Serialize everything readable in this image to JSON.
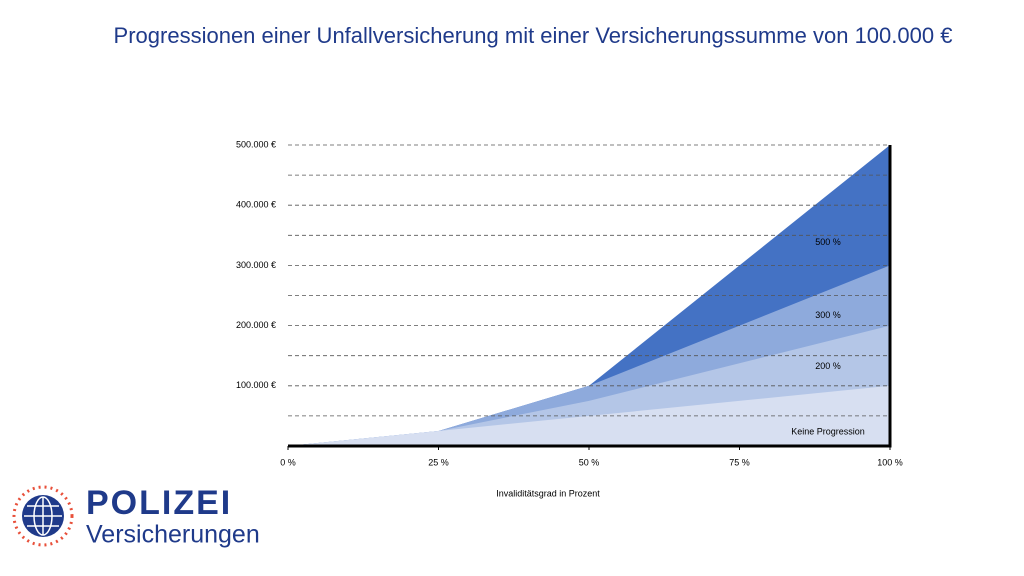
{
  "chart_data": {
    "type": "area",
    "title": "Progressionen einer Unfallversicherung mit einer Versicherungssumme von 100.000 €",
    "xlabel": "Invaliditätsgrad in Prozent",
    "x": [
      0,
      25,
      50,
      100
    ],
    "series": [
      {
        "name": "Keine Progression",
        "color": "#d7dff1",
        "values": [
          0,
          25000,
          50000,
          100000
        ]
      },
      {
        "name": "200 %",
        "color": "#b4c6e7",
        "values": [
          0,
          25000,
          75000,
          200000
        ]
      },
      {
        "name": "300 %",
        "color": "#8eaadc",
        "values": [
          0,
          25000,
          100000,
          300000
        ]
      },
      {
        "name": "500 %",
        "color": "#4472c4",
        "values": [
          0,
          25000,
          100000,
          500000
        ]
      }
    ],
    "xlim": [
      0,
      100
    ],
    "xticks": [
      {
        "value": 0,
        "label": "0 %"
      },
      {
        "value": 25,
        "label": "25 %"
      },
      {
        "value": 50,
        "label": "50 %"
      },
      {
        "value": 75,
        "label": "75 %"
      },
      {
        "value": 100,
        "label": "100 %"
      }
    ],
    "ylim": [
      0,
      500000
    ],
    "yticks": [
      {
        "value": 100000,
        "label": "100.000 €"
      },
      {
        "value": 200000,
        "label": "200.000 €"
      },
      {
        "value": 300000,
        "label": "300.000 €"
      },
      {
        "value": 400000,
        "label": "400.000 €"
      },
      {
        "value": 500000,
        "label": "500.000 €"
      }
    ],
    "minor_grid": [
      50000,
      150000,
      250000,
      350000,
      450000
    ],
    "grid": true
  },
  "logo": {
    "brand": "POLIZEI",
    "subtitle": "Versicherungen"
  }
}
